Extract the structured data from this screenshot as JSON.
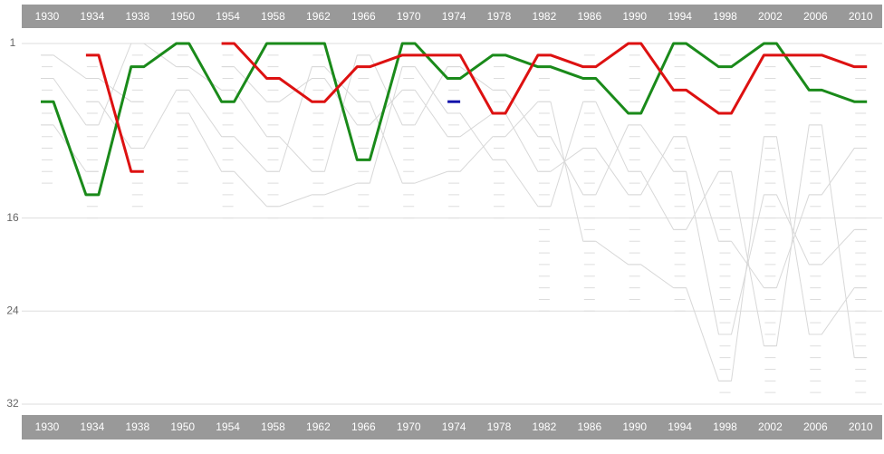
{
  "chart_data": {
    "type": "bump",
    "categories": [
      "1930",
      "1934",
      "1938",
      "1950",
      "1954",
      "1958",
      "1962",
      "1966",
      "1970",
      "1974",
      "1978",
      "1982",
      "1986",
      "1990",
      "1994",
      "1998",
      "2002",
      "2006",
      "2010"
    ],
    "team_counts": [
      13,
      16,
      15,
      13,
      16,
      16,
      16,
      16,
      16,
      16,
      16,
      24,
      24,
      24,
      24,
      32,
      32,
      32,
      32
    ],
    "ylim": [
      1,
      32
    ],
    "yticks": [
      1,
      16,
      24,
      32
    ],
    "grid": true,
    "background_series": [
      {
        "color": "#d8d8d8",
        "values": [
          2,
          4,
          6,
          null,
          3,
          6,
          4,
          8,
          5,
          9,
          7,
          12,
          10,
          14,
          9,
          18,
          22,
          14,
          10
        ]
      },
      {
        "color": "#d8d8d8",
        "values": [
          4,
          8,
          1,
          3,
          5,
          9,
          12,
          2,
          8,
          3,
          5,
          9,
          14,
          8,
          12,
          26,
          14,
          20,
          17
        ]
      },
      {
        "color": "#d8d8d8",
        "values": [
          null,
          6,
          10,
          5,
          9,
          12,
          3,
          6,
          13,
          12,
          9,
          6,
          18,
          20,
          22,
          30,
          9,
          26,
          22
        ]
      },
      {
        "color": "#d8d8d8",
        "values": [
          8,
          12,
          null,
          7,
          12,
          15,
          14,
          13,
          3,
          7,
          11,
          15,
          6,
          12,
          17,
          12,
          27,
          8,
          28
        ]
      }
    ],
    "series": [
      {
        "color": "#1a8a1a",
        "values": [
          6,
          14,
          3,
          1,
          6,
          1,
          1,
          11,
          1,
          4,
          2,
          3,
          4,
          7,
          1,
          3,
          1,
          5,
          6
        ]
      },
      {
        "color": "#dd1111",
        "values": [
          null,
          2,
          12,
          null,
          1,
          4,
          6,
          3,
          2,
          2,
          7,
          2,
          3,
          1,
          5,
          7,
          2,
          2,
          3
        ]
      },
      {
        "color": "#1111aa",
        "values": [
          null,
          null,
          null,
          null,
          null,
          null,
          null,
          null,
          null,
          6,
          null,
          null,
          null,
          null,
          null,
          null,
          null,
          null,
          null
        ]
      }
    ]
  }
}
